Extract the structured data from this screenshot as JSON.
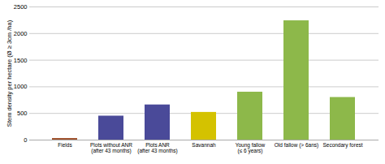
{
  "chart_data": {
    "type": "bar",
    "categories": [
      "Fields",
      "Plots without ANR\n(after 43 months)",
      "Plots ANR\n(after 43 months)",
      "Savannah",
      "Young fallow\n(≤ 6 years)",
      "Old fallow (> 6ans)",
      "Secondary forest"
    ],
    "values": [
      30,
      450,
      660,
      520,
      900,
      2240,
      800
    ],
    "colors": [
      "#a0522d",
      "#4a4a99",
      "#4a4a99",
      "#d4c200",
      "#8db84a",
      "#8db84a",
      "#8db84a"
    ],
    "ylabel": "Stem density per hectare (Ø ≥ 3cm /ha)",
    "ylim": [
      0,
      2500
    ],
    "yticks": [
      0,
      500,
      1000,
      1500,
      2000,
      2500
    ],
    "grid": true
  }
}
